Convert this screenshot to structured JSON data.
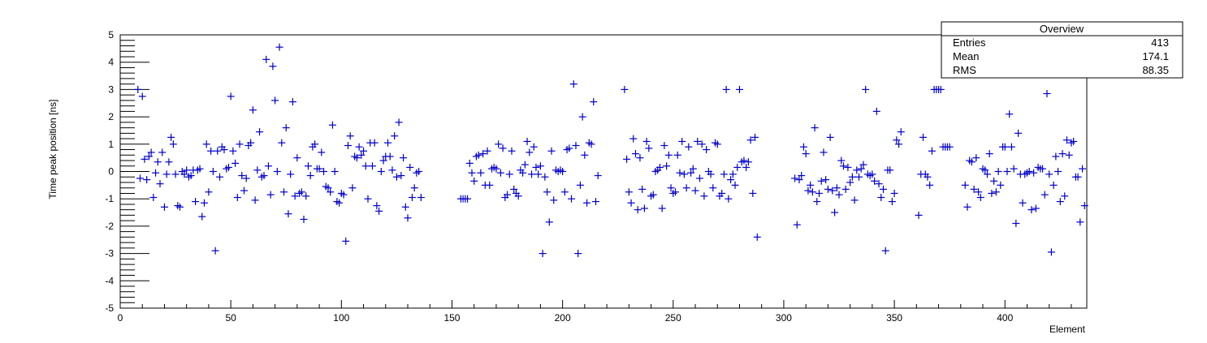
{
  "chart_data": {
    "type": "scatter",
    "title": "",
    "xlabel": "Element",
    "ylabel": "Time peak position [ns]",
    "xlim": [
      0,
      437
    ],
    "ylim": [
      -5,
      5
    ],
    "x_ticks": [
      0,
      50,
      100,
      150,
      200,
      250,
      300,
      350,
      400
    ],
    "y_ticks": [
      -5,
      -4,
      -3,
      -2,
      -1,
      0,
      1,
      2,
      3,
      4,
      5
    ],
    "marker": "cross",
    "marker_color": "#0000cc",
    "grid": false,
    "stats_box": {
      "title": "Overview",
      "rows": [
        {
          "label": "Entries",
          "value": "413"
        },
        {
          "label": "Mean",
          "value": "174.1"
        },
        {
          "label": "RMS",
          "value": "88.35"
        }
      ]
    },
    "points": [
      [
        8,
        3.0
      ],
      [
        9,
        -0.25
      ],
      [
        10,
        2.75
      ],
      [
        11,
        0.45
      ],
      [
        12,
        -0.3
      ],
      [
        13,
        0.55
      ],
      [
        14,
        0.7
      ],
      [
        15,
        -0.95
      ],
      [
        16,
        -0.05
      ],
      [
        17,
        0.35
      ],
      [
        18,
        -0.45
      ],
      [
        19,
        0.7
      ],
      [
        20,
        -1.3
      ],
      [
        21,
        -0.1
      ],
      [
        22,
        0.35
      ],
      [
        23,
        1.25
      ],
      [
        24,
        1.0
      ],
      [
        25,
        -0.1
      ],
      [
        26,
        -1.25
      ],
      [
        27,
        -1.3
      ],
      [
        28,
        0.0
      ],
      [
        29,
        -0.1
      ],
      [
        30,
        0.05
      ],
      [
        31,
        -0.2
      ],
      [
        32,
        -0.15
      ],
      [
        33,
        0.05
      ],
      [
        34,
        -1.1
      ],
      [
        35,
        0.05
      ],
      [
        36,
        0.1
      ],
      [
        37,
        -1.65
      ],
      [
        38,
        -1.15
      ],
      [
        39,
        1.0
      ],
      [
        40,
        -0.75
      ],
      [
        41,
        0.75
      ],
      [
        42,
        0.0
      ],
      [
        43,
        -2.9
      ],
      [
        44,
        0.75
      ],
      [
        45,
        -0.2
      ],
      [
        46,
        0.9
      ],
      [
        47,
        0.8
      ],
      [
        48,
        0.1
      ],
      [
        49,
        0.15
      ],
      [
        50,
        2.75
      ],
      [
        51,
        0.75
      ],
      [
        52,
        0.3
      ],
      [
        53,
        -0.95
      ],
      [
        54,
        1.0
      ],
      [
        55,
        -0.15
      ],
      [
        56,
        -0.7
      ],
      [
        57,
        -0.25
      ],
      [
        58,
        0.95
      ],
      [
        59,
        1.05
      ],
      [
        60,
        2.25
      ],
      [
        61,
        -1.05
      ],
      [
        62,
        0.05
      ],
      [
        63,
        1.45
      ],
      [
        64,
        -0.2
      ],
      [
        65,
        -0.15
      ],
      [
        66,
        4.1
      ],
      [
        67,
        0.2
      ],
      [
        68,
        -0.85
      ],
      [
        69,
        3.85
      ],
      [
        70,
        2.6
      ],
      [
        71,
        0.0
      ],
      [
        72,
        4.55
      ],
      [
        73,
        1.05
      ],
      [
        74,
        -0.75
      ],
      [
        75,
        1.6
      ],
      [
        76,
        -1.55
      ],
      [
        77,
        -0.1
      ],
      [
        78,
        2.55
      ],
      [
        79,
        -0.9
      ],
      [
        80,
        0.5
      ],
      [
        81,
        -0.8
      ],
      [
        82,
        -0.75
      ],
      [
        83,
        -1.75
      ],
      [
        84,
        -0.9
      ],
      [
        85,
        0.2
      ],
      [
        86,
        -0.15
      ],
      [
        87,
        0.9
      ],
      [
        88,
        1.0
      ],
      [
        89,
        0.1
      ],
      [
        90,
        0.1
      ],
      [
        91,
        0.7
      ],
      [
        92,
        0.0
      ],
      [
        93,
        -0.55
      ],
      [
        94,
        -0.6
      ],
      [
        95,
        -0.75
      ],
      [
        96,
        1.7
      ],
      [
        97,
        0.0
      ],
      [
        98,
        -1.1
      ],
      [
        99,
        -1.15
      ],
      [
        100,
        -0.8
      ],
      [
        101,
        -0.85
      ],
      [
        102,
        -2.55
      ],
      [
        103,
        0.95
      ],
      [
        104,
        1.3
      ],
      [
        105,
        -0.6
      ],
      [
        106,
        0.55
      ],
      [
        107,
        0.5
      ],
      [
        108,
        0.9
      ],
      [
        109,
        0.6
      ],
      [
        110,
        0.75
      ],
      [
        111,
        0.2
      ],
      [
        112,
        -1.0
      ],
      [
        113,
        1.05
      ],
      [
        114,
        0.2
      ],
      [
        115,
        1.05
      ],
      [
        116,
        -1.25
      ],
      [
        117,
        -1.45
      ],
      [
        118,
        0.0
      ],
      [
        119,
        0.4
      ],
      [
        120,
        0.55
      ],
      [
        121,
        1.05
      ],
      [
        122,
        0.55
      ],
      [
        123,
        0.05
      ],
      [
        124,
        1.3
      ],
      [
        125,
        -0.2
      ],
      [
        126,
        1.8
      ],
      [
        127,
        -0.15
      ],
      [
        128,
        0.5
      ],
      [
        129,
        -1.3
      ],
      [
        130,
        -1.7
      ],
      [
        131,
        0.15
      ],
      [
        132,
        -0.95
      ],
      [
        133,
        -0.6
      ],
      [
        134,
        -0.05
      ],
      [
        135,
        0.0
      ],
      [
        136,
        -0.95
      ],
      [
        154,
        -1.0
      ],
      [
        155,
        -1.0
      ],
      [
        156,
        -1.0
      ],
      [
        157,
        -1.0
      ],
      [
        158,
        0.3
      ],
      [
        159,
        -0.05
      ],
      [
        160,
        -0.35
      ],
      [
        161,
        0.55
      ],
      [
        162,
        0.6
      ],
      [
        163,
        -0.05
      ],
      [
        164,
        0.65
      ],
      [
        165,
        -0.5
      ],
      [
        166,
        0.75
      ],
      [
        167,
        -0.5
      ],
      [
        168,
        0.1
      ],
      [
        169,
        0.15
      ],
      [
        170,
        0.1
      ],
      [
        171,
        1.0
      ],
      [
        172,
        -0.05
      ],
      [
        173,
        0.85
      ],
      [
        174,
        -0.95
      ],
      [
        175,
        -0.85
      ],
      [
        176,
        -0.1
      ],
      [
        177,
        0.75
      ],
      [
        178,
        -0.65
      ],
      [
        179,
        -0.8
      ],
      [
        180,
        -0.9
      ],
      [
        181,
        0.05
      ],
      [
        182,
        -0.05
      ],
      [
        183,
        0.25
      ],
      [
        184,
        1.1
      ],
      [
        185,
        0.7
      ],
      [
        186,
        -0.1
      ],
      [
        187,
        0.9
      ],
      [
        188,
        0.15
      ],
      [
        189,
        -0.1
      ],
      [
        190,
        0.2
      ],
      [
        191,
        -3.0
      ],
      [
        192,
        -0.2
      ],
      [
        193,
        -0.75
      ],
      [
        194,
        -1.85
      ],
      [
        195,
        0.75
      ],
      [
        196,
        -1.05
      ],
      [
        197,
        0.05
      ],
      [
        198,
        0.0
      ],
      [
        199,
        0.05
      ],
      [
        200,
        0.0
      ],
      [
        201,
        -0.75
      ],
      [
        202,
        0.8
      ],
      [
        203,
        0.85
      ],
      [
        204,
        -1.0
      ],
      [
        205,
        3.2
      ],
      [
        206,
        0.95
      ],
      [
        207,
        -3.0
      ],
      [
        208,
        -0.5
      ],
      [
        209,
        2.0
      ],
      [
        210,
        0.6
      ],
      [
        211,
        -1.15
      ],
      [
        212,
        1.05
      ],
      [
        213,
        1.0
      ],
      [
        214,
        2.55
      ],
      [
        215,
        -1.1
      ],
      [
        216,
        -0.15
      ],
      [
        228,
        3.0
      ],
      [
        229,
        0.45
      ],
      [
        230,
        -0.75
      ],
      [
        231,
        -1.15
      ],
      [
        232,
        1.2
      ],
      [
        233,
        0.65
      ],
      [
        234,
        -1.4
      ],
      [
        235,
        0.5
      ],
      [
        236,
        -0.65
      ],
      [
        237,
        -1.35
      ],
      [
        238,
        1.1
      ],
      [
        239,
        0.85
      ],
      [
        240,
        -0.9
      ],
      [
        241,
        -0.85
      ],
      [
        242,
        0.0
      ],
      [
        243,
        0.05
      ],
      [
        244,
        0.15
      ],
      [
        245,
        -1.35
      ],
      [
        246,
        0.95
      ],
      [
        247,
        0.2
      ],
      [
        248,
        0.6
      ],
      [
        249,
        -0.6
      ],
      [
        250,
        -0.8
      ],
      [
        251,
        -0.75
      ],
      [
        252,
        0.6
      ],
      [
        253,
        -0.05
      ],
      [
        254,
        1.1
      ],
      [
        255,
        -0.1
      ],
      [
        256,
        -0.6
      ],
      [
        257,
        0.9
      ],
      [
        258,
        -0.05
      ],
      [
        259,
        0.1
      ],
      [
        260,
        -0.7
      ],
      [
        261,
        1.1
      ],
      [
        262,
        -0.25
      ],
      [
        263,
        1.0
      ],
      [
        264,
        -0.9
      ],
      [
        265,
        0.8
      ],
      [
        266,
        0.0
      ],
      [
        267,
        -0.1
      ],
      [
        268,
        -0.6
      ],
      [
        269,
        1.05
      ],
      [
        270,
        1.0
      ],
      [
        271,
        -0.9
      ],
      [
        272,
        -0.8
      ],
      [
        273,
        -0.1
      ],
      [
        274,
        3.0
      ],
      [
        275,
        -1.0
      ],
      [
        276,
        -0.3
      ],
      [
        277,
        -0.1
      ],
      [
        278,
        -0.5
      ],
      [
        279,
        0.15
      ],
      [
        280,
        3.0
      ],
      [
        281,
        0.35
      ],
      [
        282,
        0.4
      ],
      [
        283,
        0.15
      ],
      [
        284,
        0.35
      ],
      [
        285,
        1.15
      ],
      [
        286,
        -0.8
      ],
      [
        287,
        1.25
      ],
      [
        288,
        -2.4
      ],
      [
        305,
        -0.25
      ],
      [
        306,
        -1.95
      ],
      [
        307,
        -0.3
      ],
      [
        308,
        -0.15
      ],
      [
        309,
        0.9
      ],
      [
        310,
        0.65
      ],
      [
        311,
        -0.7
      ],
      [
        312,
        -0.5
      ],
      [
        313,
        -0.75
      ],
      [
        314,
        1.6
      ],
      [
        315,
        -1.1
      ],
      [
        316,
        -0.8
      ],
      [
        317,
        -0.35
      ],
      [
        318,
        0.7
      ],
      [
        319,
        -0.3
      ],
      [
        320,
        -0.65
      ],
      [
        321,
        1.25
      ],
      [
        322,
        -0.7
      ],
      [
        323,
        -1.5
      ],
      [
        324,
        -0.6
      ],
      [
        325,
        -0.85
      ],
      [
        326,
        0.4
      ],
      [
        327,
        0.2
      ],
      [
        328,
        -0.65
      ],
      [
        329,
        0.15
      ],
      [
        330,
        -0.4
      ],
      [
        331,
        -0.2
      ],
      [
        332,
        -1.05
      ],
      [
        333,
        0.05
      ],
      [
        334,
        -0.2
      ],
      [
        335,
        0.1
      ],
      [
        336,
        0.25
      ],
      [
        337,
        3.0
      ],
      [
        338,
        -0.1
      ],
      [
        339,
        -0.15
      ],
      [
        340,
        -0.1
      ],
      [
        341,
        -0.35
      ],
      [
        342,
        2.2
      ],
      [
        343,
        -0.45
      ],
      [
        344,
        -0.95
      ],
      [
        345,
        -0.65
      ],
      [
        346,
        -2.9
      ],
      [
        347,
        0.05
      ],
      [
        348,
        0.05
      ],
      [
        349,
        -1.1
      ],
      [
        350,
        -0.8
      ],
      [
        351,
        1.15
      ],
      [
        352,
        1.0
      ],
      [
        353,
        1.45
      ],
      [
        361,
        -1.6
      ],
      [
        362,
        -0.1
      ],
      [
        363,
        1.25
      ],
      [
        364,
        -0.1
      ],
      [
        365,
        -0.2
      ],
      [
        366,
        -0.5
      ],
      [
        367,
        0.75
      ],
      [
        368,
        3.0
      ],
      [
        369,
        3.0
      ],
      [
        370,
        3.0
      ],
      [
        371,
        3.0
      ],
      [
        372,
        0.9
      ],
      [
        373,
        0.9
      ],
      [
        374,
        0.9
      ],
      [
        375,
        0.9
      ],
      [
        382,
        -0.5
      ],
      [
        383,
        -1.3
      ],
      [
        384,
        0.4
      ],
      [
        385,
        0.35
      ],
      [
        386,
        -0.65
      ],
      [
        387,
        0.5
      ],
      [
        388,
        -0.75
      ],
      [
        389,
        -0.95
      ],
      [
        390,
        0.1
      ],
      [
        391,
        0.05
      ],
      [
        392,
        -0.1
      ],
      [
        393,
        0.65
      ],
      [
        394,
        -0.8
      ],
      [
        395,
        -0.35
      ],
      [
        396,
        -0.75
      ],
      [
        397,
        0.0
      ],
      [
        398,
        -0.5
      ],
      [
        399,
        0.9
      ],
      [
        400,
        0.9
      ],
      [
        401,
        0.0
      ],
      [
        402,
        2.1
      ],
      [
        403,
        0.9
      ],
      [
        404,
        0.1
      ],
      [
        405,
        -1.9
      ],
      [
        406,
        1.4
      ],
      [
        407,
        -0.1
      ],
      [
        408,
        -1.15
      ],
      [
        409,
        -0.1
      ],
      [
        410,
        -0.05
      ],
      [
        411,
        0.0
      ],
      [
        412,
        -1.4
      ],
      [
        413,
        -0.05
      ],
      [
        414,
        -1.35
      ],
      [
        415,
        0.15
      ],
      [
        416,
        0.1
      ],
      [
        417,
        0.1
      ],
      [
        418,
        -0.85
      ],
      [
        419,
        2.85
      ],
      [
        420,
        -0.1
      ],
      [
        421,
        -2.95
      ],
      [
        422,
        -0.5
      ],
      [
        423,
        0.55
      ],
      [
        424,
        0.0
      ],
      [
        425,
        -1.1
      ],
      [
        426,
        0.65
      ],
      [
        427,
        -0.9
      ],
      [
        428,
        1.15
      ],
      [
        429,
        0.6
      ],
      [
        430,
        1.05
      ],
      [
        431,
        1.1
      ],
      [
        432,
        -0.2
      ],
      [
        433,
        -0.2
      ],
      [
        434,
        -1.85
      ],
      [
        435,
        0.1
      ],
      [
        436,
        -1.25
      ]
    ]
  }
}
